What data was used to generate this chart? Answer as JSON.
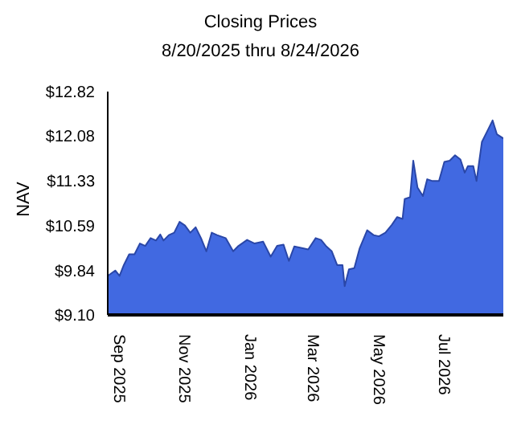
{
  "chart_data": {
    "type": "area",
    "title": "Closing Prices",
    "subtitle": "8/20/2025 thru 8/24/2026",
    "ylabel": "NAV",
    "x": [
      "2025-08-20",
      "2025-08-27",
      "2025-08-31",
      "2025-09-04",
      "2025-09-09",
      "2025-09-14",
      "2025-09-19",
      "2025-09-24",
      "2025-09-29",
      "2025-10-04",
      "2025-10-08",
      "2025-10-11",
      "2025-10-16",
      "2025-10-21",
      "2025-10-26",
      "2025-10-31",
      "2025-11-05",
      "2025-11-10",
      "2025-11-15",
      "2025-11-20",
      "2025-11-25",
      "2025-11-30",
      "2025-12-08",
      "2025-12-15",
      "2025-12-20",
      "2025-12-28",
      "2026-01-04",
      "2026-01-12",
      "2026-01-19",
      "2026-01-25",
      "2026-01-31",
      "2026-02-05",
      "2026-02-10",
      "2026-02-18",
      "2026-02-23",
      "2026-03-02",
      "2026-03-07",
      "2026-03-12",
      "2026-03-17",
      "2026-03-22",
      "2026-03-27",
      "2026-03-29",
      "2026-04-02",
      "2026-04-07",
      "2026-04-12",
      "2026-04-19",
      "2026-04-25",
      "2026-04-30",
      "2026-05-06",
      "2026-05-12",
      "2026-05-17",
      "2026-05-22",
      "2026-05-24",
      "2026-05-29",
      "2026-06-01",
      "2026-06-05",
      "2026-06-10",
      "2026-06-14",
      "2026-06-19",
      "2026-06-25",
      "2026-06-30",
      "2026-07-05",
      "2026-07-10",
      "2026-07-15",
      "2026-07-19",
      "2026-07-22",
      "2026-07-27",
      "2026-07-30",
      "2026-08-04",
      "2026-08-09",
      "2026-08-14",
      "2026-08-18",
      "2026-08-24"
    ],
    "values": [
      9.75,
      9.84,
      9.75,
      9.93,
      10.11,
      10.11,
      10.29,
      10.25,
      10.38,
      10.34,
      10.44,
      10.34,
      10.43,
      10.47,
      10.65,
      10.59,
      10.47,
      10.56,
      10.38,
      10.16,
      10.47,
      10.43,
      10.38,
      10.16,
      10.25,
      10.35,
      10.29,
      10.32,
      10.07,
      10.25,
      10.27,
      10.0,
      10.24,
      10.21,
      10.19,
      10.38,
      10.35,
      10.24,
      10.16,
      9.93,
      9.93,
      9.58,
      9.86,
      9.88,
      10.21,
      10.51,
      10.43,
      10.41,
      10.47,
      10.6,
      10.73,
      10.7,
      11.03,
      11.06,
      11.67,
      11.22,
      11.08,
      11.36,
      11.33,
      11.33,
      11.65,
      11.67,
      11.76,
      11.69,
      11.47,
      11.58,
      11.58,
      11.33,
      11.98,
      12.16,
      12.34,
      12.11,
      12.04
    ],
    "color": "#4169e1",
    "xlim": [
      "2025-08-20",
      "2026-08-24"
    ],
    "xticks": [
      {
        "value": "2025-09-01",
        "label": "Sep  2025"
      },
      {
        "value": "2025-11-01",
        "label": "Nov  2025"
      },
      {
        "value": "2026-01-01",
        "label": "Jan  2026"
      },
      {
        "value": "2026-03-01",
        "label": "Mar  2026"
      },
      {
        "value": "2026-05-01",
        "label": "May  2026"
      },
      {
        "value": "2026-07-01",
        "label": "Jul  2026"
      }
    ],
    "ylim": [
      9.1,
      12.82
    ],
    "yticks": [
      {
        "value": 9.1,
        "label": "$9.10"
      },
      {
        "value": 9.84,
        "label": "$9.84"
      },
      {
        "value": 10.59,
        "label": "$10.59"
      },
      {
        "value": 11.33,
        "label": "$11.33"
      },
      {
        "value": 12.08,
        "label": "$12.08"
      },
      {
        "value": 12.82,
        "label": "$12.82"
      }
    ]
  }
}
